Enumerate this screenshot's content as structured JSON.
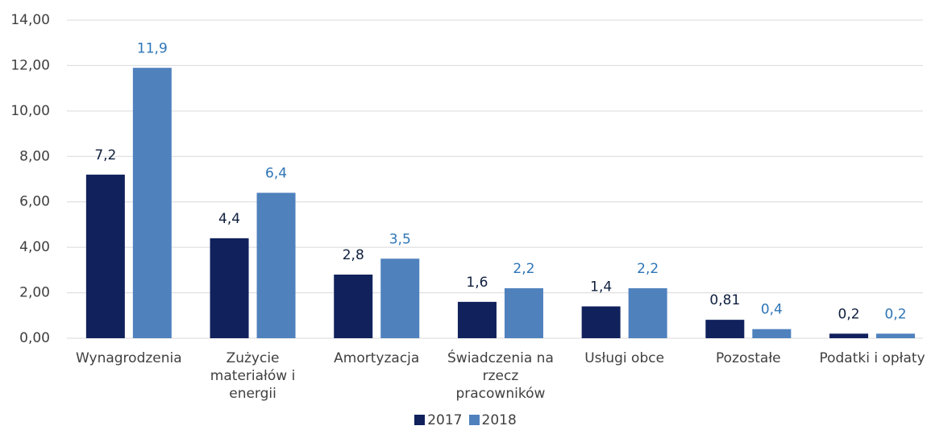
{
  "chart_data": {
    "type": "bar",
    "categories": [
      "Wynagrodzenia",
      "Zużycie materiałów i energii",
      "Amortyzacja",
      "Świadczenia na rzecz pracowników",
      "Usługi obce",
      "Pozostałe",
      "Podatki i opłaty"
    ],
    "series": [
      {
        "name": "2017",
        "color": "#10215c",
        "label_color": "#0f1f3d",
        "values": [
          7.2,
          4.4,
          2.8,
          1.6,
          1.4,
          0.81,
          0.2
        ],
        "value_labels": [
          "7,2",
          "4,4",
          "2,8",
          "1,6",
          "1,4",
          "0,81",
          "0,2"
        ]
      },
      {
        "name": "2018",
        "color": "#4f81bd",
        "label_color": "#2e75b6",
        "values": [
          11.9,
          6.4,
          3.5,
          2.2,
          2.2,
          0.4,
          0.2
        ],
        "value_labels": [
          "11,9",
          "6,4",
          "3,5",
          "2,2",
          "2,2",
          "0,4",
          "0,2"
        ]
      }
    ],
    "ylim": [
      0,
      14
    ],
    "yticks": [
      {
        "value": 0,
        "label": "0,00"
      },
      {
        "value": 2,
        "label": "2,00"
      },
      {
        "value": 4,
        "label": "4,00"
      },
      {
        "value": 6,
        "label": "6,00"
      },
      {
        "value": 8,
        "label": "8,00"
      },
      {
        "value": 10,
        "label": "10,00"
      },
      {
        "value": 12,
        "label": "12,00"
      },
      {
        "value": 14,
        "label": "14,00"
      }
    ],
    "grid": true,
    "legend": "bottom"
  }
}
